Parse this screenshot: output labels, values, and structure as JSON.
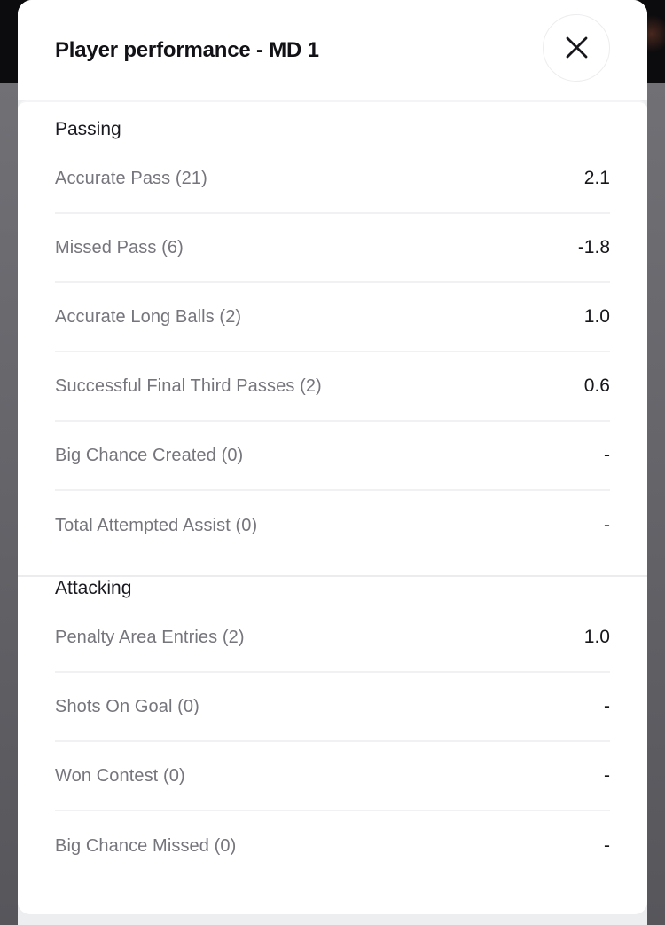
{
  "modal": {
    "title": "Player performance - MD 1",
    "close": {
      "icon": "close-icon",
      "glyph": "✕"
    }
  },
  "sections": [
    {
      "title": "Passing",
      "rows": [
        {
          "label": "Accurate Pass (21)",
          "value": "2.1"
        },
        {
          "label": "Missed Pass (6)",
          "value": "-1.8"
        },
        {
          "label": "Accurate Long Balls (2)",
          "value": "1.0"
        },
        {
          "label": "Successful Final Third Passes (2)",
          "value": "0.6"
        },
        {
          "label": "Big Chance Created (0)",
          "value": "-"
        },
        {
          "label": "Total Attempted Assist (0)",
          "value": "-"
        }
      ]
    },
    {
      "title": "Attacking",
      "rows": [
        {
          "label": "Penalty Area Entries (2)",
          "value": "1.0"
        },
        {
          "label": "Shots On Goal (0)",
          "value": "-"
        },
        {
          "label": "Won Contest (0)",
          "value": "-"
        },
        {
          "label": "Big Chance Missed (0)",
          "value": "-"
        }
      ]
    }
  ],
  "colors": {
    "backdrop_black": "#0c0c0e",
    "backdrop_gray": "#68686d",
    "surface": "#ffffff",
    "sheet_bg": "#edeef0",
    "title_text": "#121216",
    "heading_text": "#191920",
    "label_text": "#75757c",
    "value_text": "#17171b",
    "row_divider": "#f1f1f3",
    "section_divider": "#ececee",
    "close_circle_border": "#ededef"
  }
}
